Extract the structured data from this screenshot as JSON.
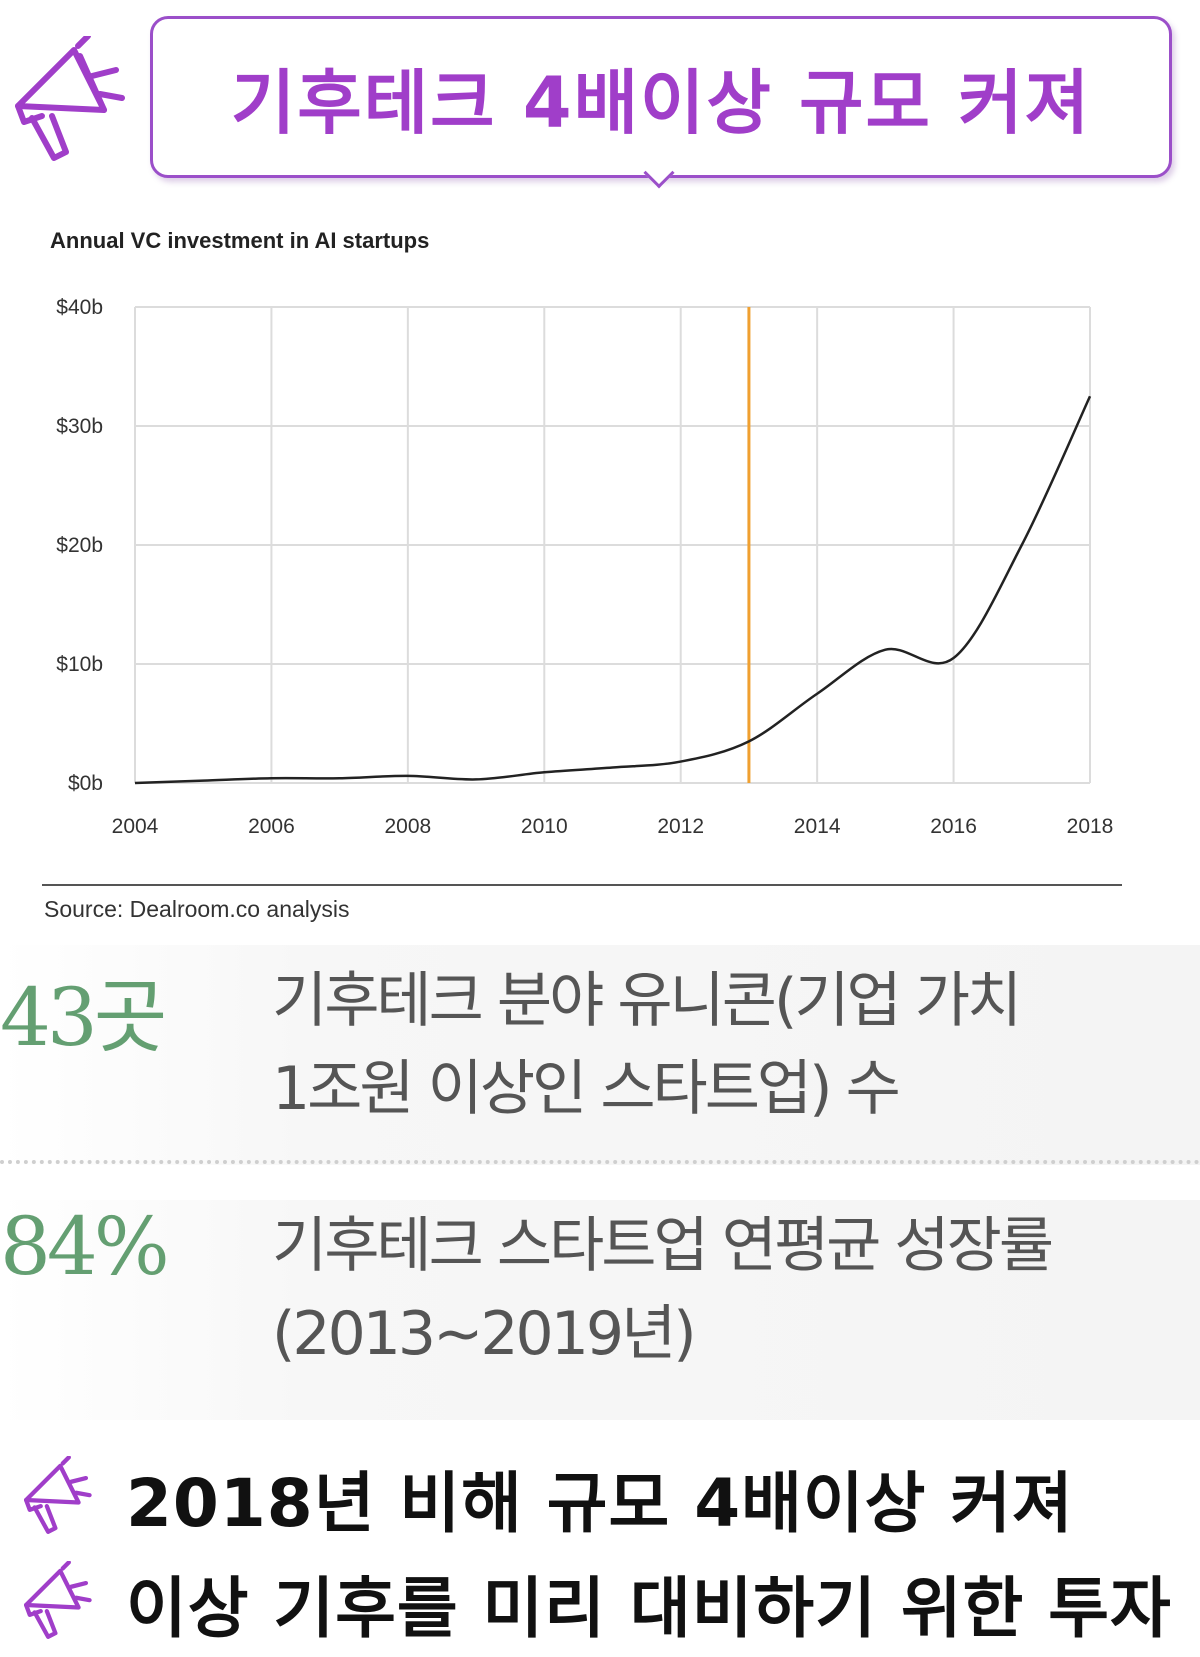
{
  "header": {
    "title": "기후테크 4배이상 규모 커져"
  },
  "chart_data": {
    "type": "line",
    "title": "Annual VC investment in AI startups",
    "x": [
      2004,
      2005,
      2006,
      2007,
      2008,
      2009,
      2010,
      2011,
      2012,
      2013,
      2014,
      2015,
      2016,
      2017,
      2018
    ],
    "series": [
      {
        "values": [
          0,
          0.2,
          0.4,
          0.4,
          0.6,
          0.3,
          0.9,
          1.3,
          1.8,
          3.5,
          7.5,
          11.2,
          10.5,
          20,
          32.5
        ]
      }
    ],
    "xticks": [
      "2004",
      "2006",
      "2008",
      "2010",
      "2012",
      "2014",
      "2016",
      "2018"
    ],
    "yticks": [
      "$0b",
      "$10b",
      "$20b",
      "$30b",
      "$40b"
    ],
    "xlim": [
      2004,
      2018
    ],
    "ylim": [
      0,
      40
    ],
    "grid": true,
    "marker_line": {
      "x": 2013,
      "color": "#f0a030"
    },
    "line_color": "#222222",
    "source": "Source: Dealroom.co analysis"
  },
  "stats": [
    {
      "number": "43곳",
      "description_line1": "기후테크 분야 유니콘(기업 가치",
      "description_line2": "1조원 이상인 스타트업) 수"
    },
    {
      "number": "84%",
      "description_line1": "기후테크 스타트업 연평균 성장률",
      "description_line2": "(2013~2019년)"
    }
  ],
  "bullets": [
    {
      "icon": "megaphone-icon",
      "text": "2018년 비해 규모 4배이상 커져"
    },
    {
      "icon": "megaphone-icon",
      "text": "이상 기후를 미리 대비하기 위한 투자"
    }
  ],
  "colors": {
    "accent": "#a03ec9",
    "stat_green": "#4a8f5a"
  }
}
